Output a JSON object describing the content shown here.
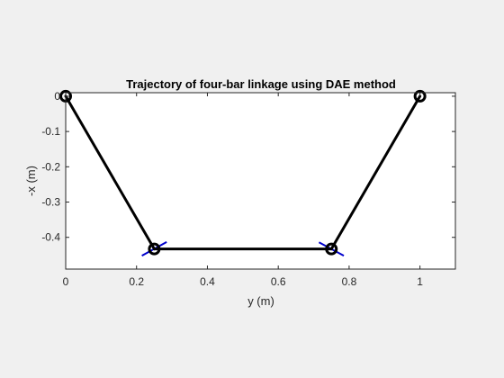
{
  "chart_data": {
    "type": "line",
    "title": "Trajectory of four-bar linkage using DAE method",
    "xlabel": "y (m)",
    "ylabel": "-x (m)",
    "xlim": [
      0,
      1.1
    ],
    "ylim": [
      -0.49,
      0.01
    ],
    "xticks": [
      0,
      0.2,
      0.4,
      0.6,
      0.8,
      1
    ],
    "xtick_labels": [
      "0",
      "0.2",
      "0.4",
      "0.6",
      "0.8",
      "1"
    ],
    "yticks": [
      0,
      -0.1,
      -0.2,
      -0.3,
      -0.4
    ],
    "ytick_labels": [
      "0",
      "-0.1",
      "-0.2",
      "-0.3",
      "-0.4"
    ],
    "grid": false,
    "series": [
      {
        "color": "#000000",
        "x": [
          0,
          0.25,
          0.75,
          1
        ],
        "y": [
          0,
          -0.433,
          -0.433,
          0
        ]
      }
    ],
    "joints": {
      "color": "#000000",
      "x": [
        0,
        0.25,
        0.75,
        1
      ],
      "y": [
        0,
        -0.433,
        -0.433,
        0
      ]
    },
    "trajectories": [
      {
        "color": "#0000cc",
        "x": [
          0.215,
          0.285
        ],
        "y": [
          -0.452,
          -0.413
        ]
      },
      {
        "color": "#0000cc",
        "x": [
          0.715,
          0.785
        ],
        "y": [
          -0.414,
          -0.452
        ]
      }
    ]
  }
}
